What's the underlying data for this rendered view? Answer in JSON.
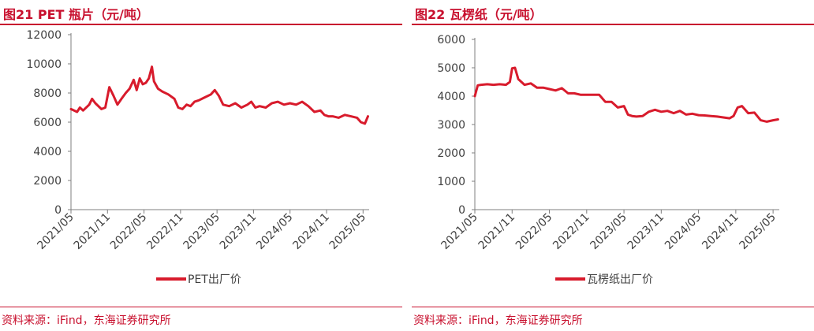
{
  "figures": [
    {
      "title": "图21  PET 瓶片（元/吨）",
      "source": "资料来源：iFind，东海证券研究所"
    },
    {
      "title": "图22  瓦楞纸（元/吨）",
      "source": "资料来源：iFind，东海证券研究所"
    }
  ],
  "colors": {
    "accent": "#c8102e",
    "series": "#d81b2c",
    "axis": "#7f7f7f",
    "text": "#404040"
  },
  "chart_data": [
    {
      "type": "line",
      "title": "",
      "xlabel": "",
      "ylabel": "",
      "ylim": [
        0,
        12000
      ],
      "yticks": [
        0,
        2000,
        4000,
        6000,
        8000,
        10000,
        12000
      ],
      "xlim": [
        "2021-05",
        "2025-06"
      ],
      "xticks": [
        "2021/05",
        "2021/11",
        "2022/05",
        "2022/11",
        "2023/05",
        "2023/11",
        "2024/05",
        "2024/11",
        "2025/05"
      ],
      "grid": false,
      "legend": "bottom-center",
      "series": [
        {
          "name": "PET出厂价",
          "x": [
            "2021-05-01",
            "2021-06-01",
            "2021-06-15",
            "2021-07-01",
            "2021-08-01",
            "2021-08-15",
            "2021-09-01",
            "2021-10-01",
            "2021-10-20",
            "2021-11-10",
            "2021-12-01",
            "2021-12-20",
            "2022-01-10",
            "2022-02-01",
            "2022-02-20",
            "2022-03-10",
            "2022-03-25",
            "2022-04-10",
            "2022-04-25",
            "2022-05-10",
            "2022-05-25",
            "2022-06-10",
            "2022-06-20",
            "2022-07-10",
            "2022-08-01",
            "2022-09-01",
            "2022-10-01",
            "2022-10-20",
            "2022-11-10",
            "2022-12-01",
            "2022-12-20",
            "2023-01-10",
            "2023-02-01",
            "2023-03-01",
            "2023-04-01",
            "2023-04-20",
            "2023-05-10",
            "2023-06-01",
            "2023-07-01",
            "2023-08-01",
            "2023-09-01",
            "2023-10-01",
            "2023-10-20",
            "2023-11-10",
            "2023-12-01",
            "2024-01-01",
            "2024-02-01",
            "2024-03-01",
            "2024-04-01",
            "2024-05-01",
            "2024-06-01",
            "2024-07-01",
            "2024-08-01",
            "2024-09-01",
            "2024-10-01",
            "2024-10-20",
            "2024-11-10",
            "2024-12-01",
            "2025-01-01",
            "2025-02-01",
            "2025-03-01",
            "2025-04-01",
            "2025-04-20",
            "2025-05-10",
            "2025-05-25"
          ],
          "values": [
            6900,
            6700,
            7000,
            6800,
            7200,
            7600,
            7300,
            6900,
            7000,
            8400,
            7800,
            7200,
            7600,
            8000,
            8300,
            8900,
            8200,
            9000,
            8600,
            8700,
            9000,
            9800,
            8800,
            8300,
            8100,
            7900,
            7600,
            7000,
            6900,
            7200,
            7100,
            7400,
            7500,
            7700,
            7900,
            8200,
            7800,
            7200,
            7100,
            7300,
            7000,
            7200,
            7400,
            7000,
            7100,
            7000,
            7300,
            7400,
            7200,
            7300,
            7200,
            7400,
            7100,
            6700,
            6800,
            6500,
            6400,
            6400,
            6300,
            6500,
            6400,
            6300,
            6000,
            5900,
            6400
          ]
        }
      ]
    },
    {
      "type": "line",
      "title": "",
      "xlabel": "",
      "ylabel": "",
      "ylim": [
        0,
        6000
      ],
      "yticks": [
        0,
        1000,
        2000,
        3000,
        4000,
        5000,
        6000
      ],
      "xlim": [
        "2021-05",
        "2025-06"
      ],
      "xticks": [
        "2021/05",
        "2021/11",
        "2022/05",
        "2022/11",
        "2023/05",
        "2023/11",
        "2024/05",
        "2024/11",
        "2025/05"
      ],
      "grid": false,
      "legend": "bottom-center",
      "series": [
        {
          "name": "瓦楞纸出厂价",
          "x": [
            "2021-05-01",
            "2021-05-15",
            "2021-06-01",
            "2021-07-01",
            "2021-08-01",
            "2021-09-01",
            "2021-10-01",
            "2021-10-20",
            "2021-11-01",
            "2021-11-15",
            "2021-12-01",
            "2022-01-01",
            "2022-02-01",
            "2022-03-01",
            "2022-04-01",
            "2022-05-01",
            "2022-06-01",
            "2022-07-01",
            "2022-08-01",
            "2022-09-01",
            "2022-10-01",
            "2022-11-01",
            "2022-12-01",
            "2023-01-01",
            "2023-02-01",
            "2023-03-01",
            "2023-04-01",
            "2023-05-01",
            "2023-05-20",
            "2023-06-10",
            "2023-07-01",
            "2023-08-01",
            "2023-09-01",
            "2023-10-01",
            "2023-11-01",
            "2023-12-01",
            "2024-01-01",
            "2024-02-01",
            "2024-03-01",
            "2024-04-01",
            "2024-05-01",
            "2024-06-01",
            "2024-07-01",
            "2024-08-01",
            "2024-09-01",
            "2024-10-01",
            "2024-10-20",
            "2024-11-10",
            "2024-12-01",
            "2025-01-01",
            "2025-02-01",
            "2025-03-01",
            "2025-04-01",
            "2025-05-01",
            "2025-05-25"
          ],
          "values": [
            4000,
            4380,
            4400,
            4420,
            4400,
            4420,
            4400,
            4500,
            4980,
            5000,
            4600,
            4400,
            4450,
            4300,
            4300,
            4250,
            4200,
            4280,
            4100,
            4100,
            4050,
            4050,
            4050,
            4050,
            3800,
            3800,
            3600,
            3650,
            3350,
            3300,
            3280,
            3300,
            3450,
            3520,
            3450,
            3480,
            3400,
            3480,
            3350,
            3380,
            3330,
            3320,
            3300,
            3280,
            3250,
            3220,
            3300,
            3600,
            3650,
            3400,
            3420,
            3150,
            3100,
            3150,
            3180
          ]
        }
      ]
    }
  ]
}
